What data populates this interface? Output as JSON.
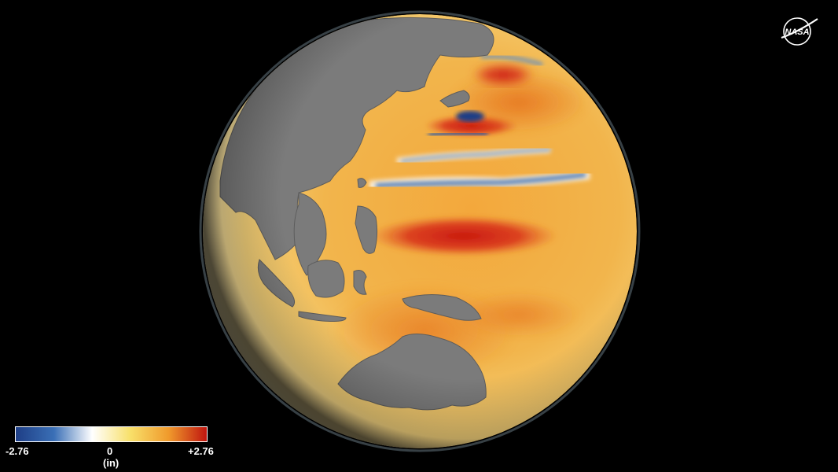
{
  "logo": {
    "text": "NASA"
  },
  "legend": {
    "min_label": "-2.76",
    "mid_label": "0",
    "max_label": "+2.76",
    "unit_label": "(in)",
    "min_value": -2.76,
    "max_value": 2.76,
    "colors": [
      "#1e3e86",
      "#3a6fb6",
      "#ffffff",
      "#f8e06a",
      "#f09a2c",
      "#c0150f"
    ]
  },
  "map": {
    "land_color": "#7a7a7a",
    "ocean_base_color": "#f3b04a",
    "background_color": "#000000"
  }
}
